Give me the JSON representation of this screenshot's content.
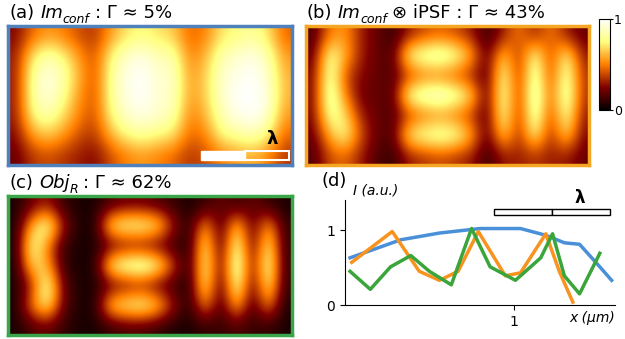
{
  "colorbar": {
    "range": [
      0,
      1
    ],
    "ticks": [
      0,
      1
    ]
  },
  "chart_data": [
    {
      "type": "heatmap",
      "panel": "(a)",
      "tick_labels": false,
      "color": "#4f81bd",
      "title": {
        "main": "Im",
        "sub": "conf",
        "after": ": Γ ≈ 5%"
      },
      "scale_bar": "λ",
      "cells": [
        [
          0.25,
          0.45,
          0.55,
          0.5,
          0.4,
          0.35,
          0.55,
          0.7,
          0.75,
          0.7,
          0.65,
          0.45,
          0.5,
          0.7,
          0.75,
          0.8,
          0.7,
          0.45
        ],
        [
          0.3,
          0.7,
          0.85,
          0.75,
          0.55,
          0.4,
          0.75,
          0.9,
          0.95,
          0.85,
          0.85,
          0.5,
          0.6,
          0.85,
          0.9,
          0.95,
          0.85,
          0.55
        ],
        [
          0.3,
          0.8,
          0.95,
          0.85,
          0.6,
          0.4,
          0.8,
          0.95,
          1.0,
          0.9,
          0.9,
          0.55,
          0.65,
          0.9,
          0.95,
          1.0,
          0.9,
          0.6
        ],
        [
          0.3,
          0.8,
          0.95,
          0.8,
          0.55,
          0.4,
          0.8,
          0.95,
          1.0,
          0.9,
          0.9,
          0.55,
          0.65,
          0.9,
          1.0,
          1.0,
          0.95,
          0.6
        ],
        [
          0.3,
          0.75,
          0.85,
          0.7,
          0.5,
          0.4,
          0.75,
          0.9,
          0.95,
          0.9,
          0.85,
          0.5,
          0.6,
          0.85,
          0.95,
          1.0,
          0.9,
          0.55
        ],
        [
          0.25,
          0.55,
          0.65,
          0.55,
          0.4,
          0.35,
          0.6,
          0.75,
          0.8,
          0.75,
          0.7,
          0.45,
          0.5,
          0.75,
          0.8,
          0.85,
          0.75,
          0.45
        ],
        [
          0.2,
          0.35,
          0.4,
          0.35,
          0.3,
          0.25,
          0.4,
          0.5,
          0.55,
          0.5,
          0.45,
          0.35,
          0.4,
          0.5,
          0.55,
          0.6,
          0.5,
          0.35
        ]
      ]
    },
    {
      "type": "heatmap",
      "panel": "(b)",
      "tick_labels": false,
      "color": "#f5a623",
      "title": {
        "main": "Im",
        "sub": "conf",
        "after": "⊗ iPSF : Γ ≈ 43%"
      },
      "cells": [
        [
          0.15,
          0.5,
          0.55,
          0.3,
          0.2,
          0.1,
          0.3,
          0.4,
          0.45,
          0.4,
          0.3,
          0.1,
          0.3,
          0.5,
          0.3,
          0.5,
          0.3,
          0.2
        ],
        [
          0.2,
          0.85,
          0.6,
          0.3,
          0.2,
          0.15,
          0.8,
          0.9,
          0.95,
          0.85,
          0.6,
          0.15,
          0.7,
          0.3,
          0.85,
          0.35,
          0.8,
          0.3
        ],
        [
          0.25,
          0.9,
          0.4,
          0.25,
          0.2,
          0.15,
          0.35,
          0.45,
          0.45,
          0.4,
          0.3,
          0.15,
          0.85,
          0.3,
          0.95,
          0.35,
          0.9,
          0.35
        ],
        [
          0.25,
          0.95,
          0.5,
          0.2,
          0.2,
          0.15,
          0.85,
          0.95,
          1.0,
          0.9,
          0.7,
          0.15,
          0.9,
          0.3,
          1.0,
          0.4,
          0.95,
          0.35
        ],
        [
          0.25,
          0.85,
          0.7,
          0.3,
          0.2,
          0.15,
          0.35,
          0.45,
          0.5,
          0.45,
          0.35,
          0.15,
          0.85,
          0.3,
          0.95,
          0.35,
          0.85,
          0.3
        ],
        [
          0.2,
          0.6,
          0.8,
          0.4,
          0.2,
          0.15,
          0.75,
          0.85,
          0.9,
          0.85,
          0.6,
          0.15,
          0.7,
          0.3,
          0.8,
          0.3,
          0.7,
          0.25
        ],
        [
          0.15,
          0.4,
          0.45,
          0.3,
          0.15,
          0.1,
          0.3,
          0.35,
          0.4,
          0.35,
          0.3,
          0.1,
          0.3,
          0.3,
          0.35,
          0.3,
          0.3,
          0.2
        ]
      ]
    },
    {
      "type": "heatmap",
      "panel": "(c)",
      "tick_labels": false,
      "color": "#3aa64a",
      "title": {
        "main": "Obj",
        "sub": "R",
        "after": ": Γ ≈ 62%"
      },
      "cells": [
        [
          0.05,
          0.2,
          0.3,
          0.1,
          0.05,
          0.05,
          0.15,
          0.2,
          0.2,
          0.15,
          0.1,
          0.05,
          0.1,
          0.2,
          0.1,
          0.2,
          0.1,
          0.05
        ],
        [
          0.05,
          0.6,
          0.9,
          0.3,
          0.05,
          0.05,
          0.75,
          0.85,
          0.85,
          0.75,
          0.3,
          0.05,
          0.6,
          0.1,
          0.7,
          0.15,
          0.6,
          0.1
        ],
        [
          0.05,
          0.85,
          0.5,
          0.1,
          0.05,
          0.05,
          0.15,
          0.2,
          0.2,
          0.15,
          0.1,
          0.05,
          0.8,
          0.1,
          0.9,
          0.15,
          0.8,
          0.1
        ],
        [
          0.05,
          0.7,
          0.6,
          0.1,
          0.05,
          0.05,
          0.8,
          0.95,
          1.0,
          0.85,
          0.4,
          0.05,
          0.85,
          0.15,
          1.0,
          0.2,
          0.9,
          0.1
        ],
        [
          0.05,
          0.3,
          0.9,
          0.2,
          0.05,
          0.05,
          0.15,
          0.2,
          0.25,
          0.15,
          0.1,
          0.05,
          0.8,
          0.1,
          0.9,
          0.15,
          0.8,
          0.1
        ],
        [
          0.05,
          0.5,
          0.8,
          0.2,
          0.05,
          0.05,
          0.7,
          0.8,
          0.85,
          0.7,
          0.3,
          0.05,
          0.55,
          0.1,
          0.65,
          0.1,
          0.55,
          0.05
        ],
        [
          0.05,
          0.15,
          0.2,
          0.1,
          0.05,
          0.05,
          0.1,
          0.15,
          0.15,
          0.1,
          0.05,
          0.05,
          0.1,
          0.1,
          0.15,
          0.1,
          0.1,
          0.05
        ]
      ]
    },
    {
      "type": "line",
      "panel": "(d)",
      "x_label": "x (µm)",
      "y_label": "I (a.u.)",
      "scale_bar": "λ",
      "xlim": [
        0,
        1.6
      ],
      "ylim": [
        0,
        1.4
      ],
      "xticks": [
        1
      ],
      "yticks": [
        0,
        1
      ],
      "series": [
        {
          "color": "#4a90d9",
          "x": [
            0.03,
            0.33,
            0.56,
            0.8,
            1.04,
            1.19,
            1.3,
            1.39,
            1.51,
            1.58
          ],
          "values": [
            0.63,
            0.87,
            0.96,
            1.02,
            1.02,
            0.93,
            0.83,
            0.81,
            0.51,
            0.33
          ]
        },
        {
          "color": "#f7931e",
          "x": [
            0.04,
            0.28,
            0.44,
            0.56,
            0.67,
            0.79,
            0.95,
            1.04,
            1.19,
            1.27,
            1.35
          ],
          "values": [
            0.57,
            0.98,
            0.45,
            0.33,
            0.45,
            0.98,
            0.39,
            0.43,
            0.95,
            0.45,
            0.04
          ]
        },
        {
          "color": "#3aa53a",
          "x": [
            0.03,
            0.15,
            0.27,
            0.39,
            0.5,
            0.63,
            0.75,
            0.86,
            1.01,
            1.16,
            1.23,
            1.3,
            1.39,
            1.51
          ],
          "values": [
            0.45,
            0.21,
            0.51,
            0.66,
            0.45,
            0.27,
            1.02,
            0.51,
            0.33,
            0.63,
            0.95,
            0.39,
            0.15,
            0.69
          ]
        }
      ]
    }
  ]
}
